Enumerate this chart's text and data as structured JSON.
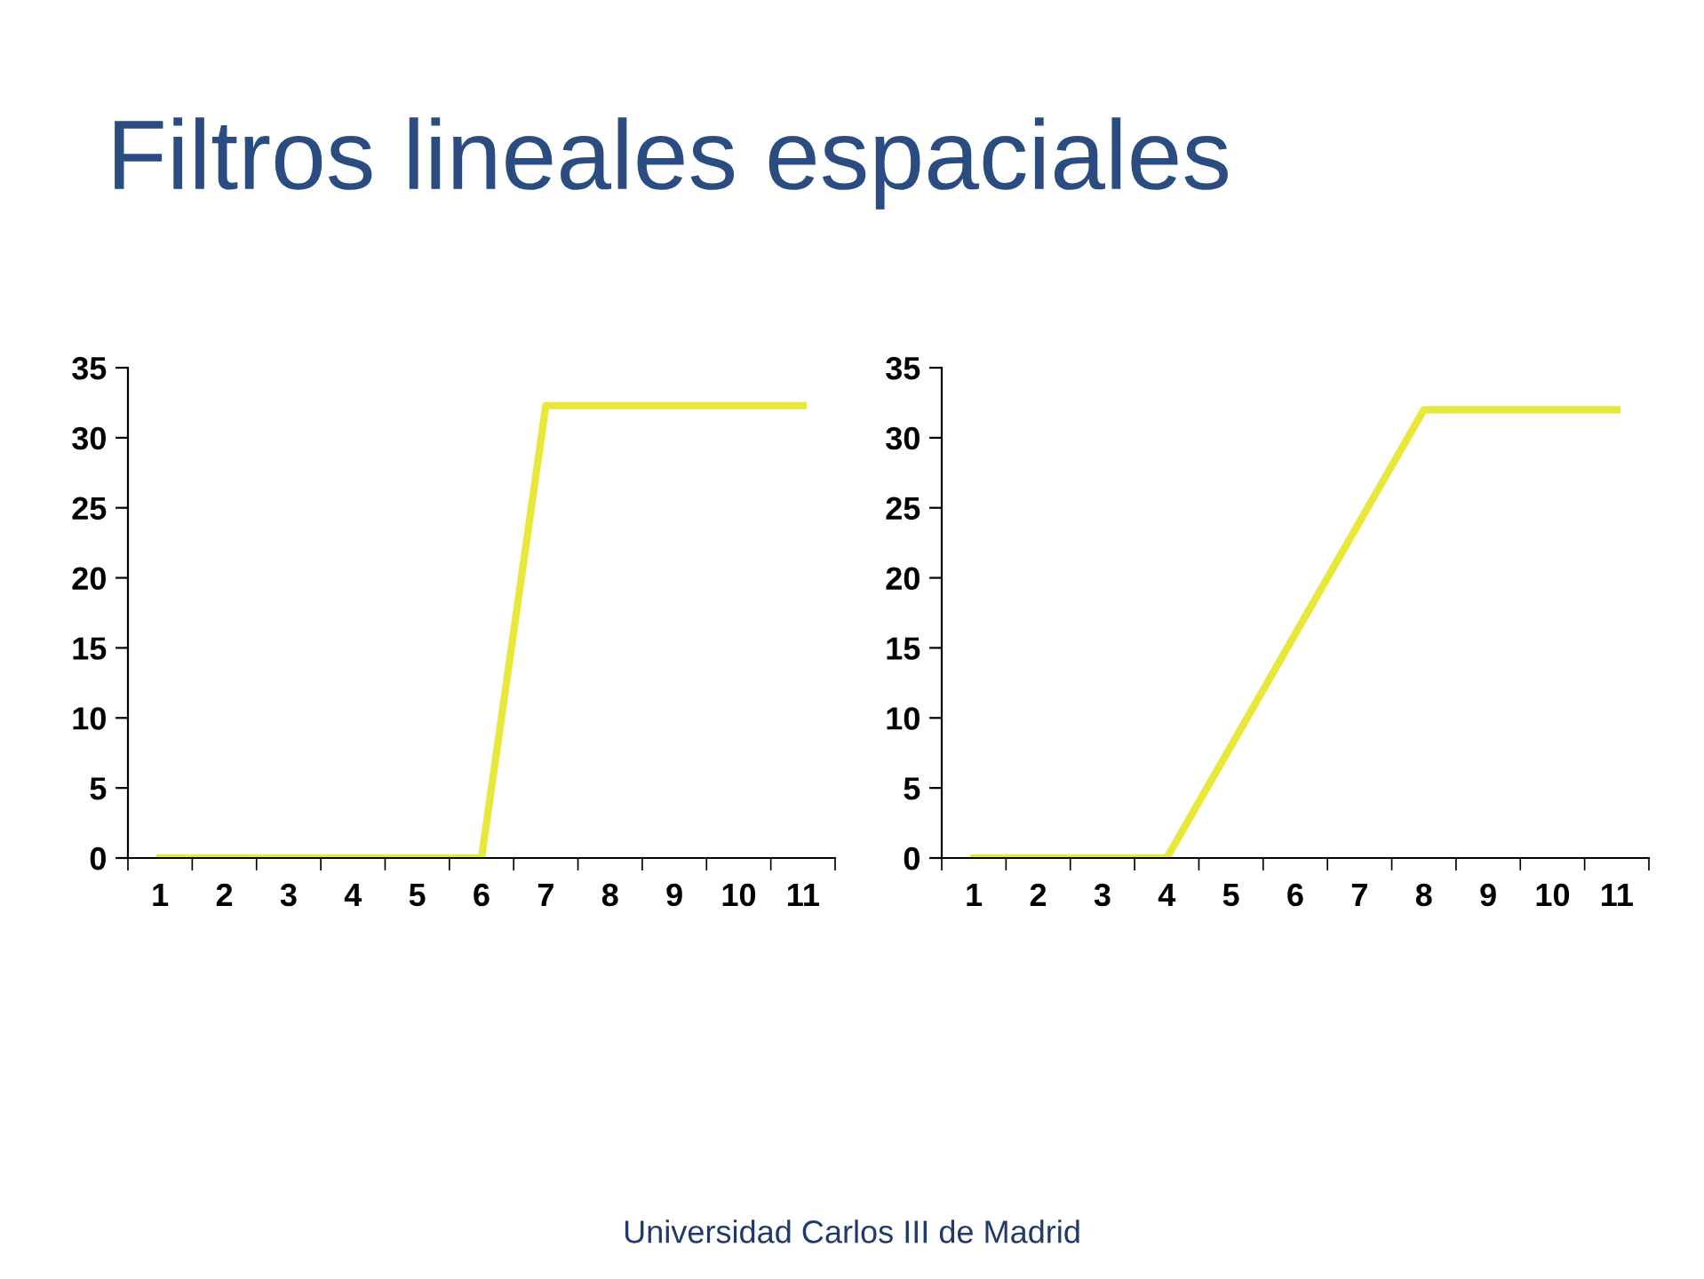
{
  "chart_data": [
    {
      "type": "line",
      "title": "Filtros lineales espaciales",
      "categories": [
        "1",
        "2",
        "3",
        "4",
        "5",
        "6",
        "7",
        "8",
        "9",
        "10",
        "11"
      ],
      "series": [
        {
          "color": "#e8e83a",
          "values": [
            0,
            0,
            0,
            0,
            0,
            0,
            32.3,
            32.3,
            32.3,
            32.3,
            32.3
          ]
        }
      ],
      "ylim": [
        0,
        35
      ],
      "yticks": [
        0,
        5,
        10,
        15,
        20,
        25,
        30,
        35
      ],
      "grid": false,
      "legend": false,
      "marker": "none",
      "line_style": "solid"
    },
    {
      "type": "line",
      "categories": [
        "1",
        "2",
        "3",
        "4",
        "5",
        "6",
        "7",
        "8",
        "9",
        "10",
        "11"
      ],
      "series": [
        {
          "color": "#e8e83a",
          "values": [
            0,
            0,
            0,
            0,
            8,
            16,
            24,
            32,
            32,
            32,
            32
          ]
        }
      ],
      "ylim": [
        0,
        35
      ],
      "yticks": [
        0,
        5,
        10,
        15,
        20,
        25,
        30,
        35
      ],
      "grid": false,
      "legend": false,
      "marker": "none",
      "line_style": "solid",
      "annotations": [
        "Universidad Carlos III de Madrid"
      ]
    }
  ]
}
